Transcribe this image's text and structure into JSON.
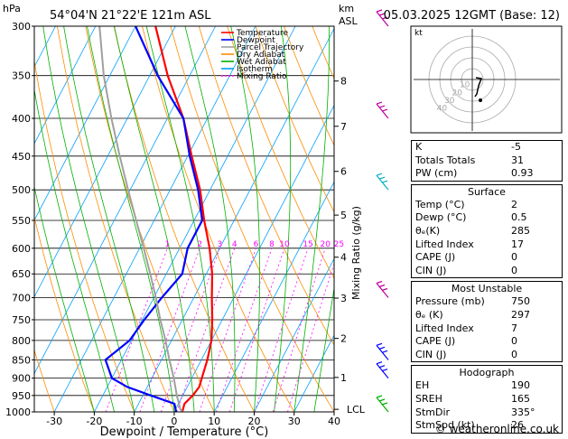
{
  "header": {
    "location": "54°04'N  21°22'E  121m  ASL",
    "datetime": "05.03.2025  12GMT  (Base: 12)",
    "hpa_label": "hPa",
    "km_label": "km",
    "asl_label": "ASL"
  },
  "chart_data": {
    "type": "line",
    "xlabel": "Dewpoint / Temperature (°C)",
    "ylabel": "Mixing Ratio (g/kg)",
    "xlim": [
      -35,
      40
    ],
    "x_ticks": [
      -30,
      -20,
      -10,
      0,
      10,
      20,
      30,
      40
    ],
    "pressure_levels": [
      300,
      350,
      400,
      450,
      500,
      550,
      600,
      650,
      700,
      750,
      800,
      850,
      900,
      950,
      1000
    ],
    "km_ticks": [
      {
        "label": "8",
        "p": 356
      },
      {
        "label": "7",
        "p": 410
      },
      {
        "label": "6",
        "p": 472
      },
      {
        "label": "5",
        "p": 541
      },
      {
        "label": "4",
        "p": 617
      },
      {
        "label": "3",
        "p": 701
      },
      {
        "label": "2",
        "p": 795
      },
      {
        "label": "1",
        "p": 898
      }
    ],
    "lcl_label": "LCL",
    "lcl_p": 992,
    "mixing_ratio_labels": [
      "1",
      "2",
      "3",
      "4",
      "6",
      "8",
      "10",
      "15",
      "20",
      "25"
    ],
    "mixing_ratio_values": [
      1,
      2,
      3,
      4,
      6,
      8,
      10,
      15,
      20,
      25
    ],
    "legend": [
      {
        "name": "Temperature",
        "color": "#ff0000"
      },
      {
        "name": "Dewpoint",
        "color": "#0000ff"
      },
      {
        "name": "Parcel Trajectory",
        "color": "#a0a0a0"
      },
      {
        "name": "Dry Adiabat",
        "color": "#ff8c00"
      },
      {
        "name": "Wet Adiabat",
        "color": "#00b000"
      },
      {
        "name": "Isotherm",
        "color": "#00a0ff"
      },
      {
        "name": "Mixing Ratio",
        "color": "#ff00ff"
      }
    ],
    "series": [
      {
        "name": "Temperature",
        "color": "#ff0000",
        "p": [
          1000,
          975,
          950,
          925,
          900,
          850,
          800,
          750,
          700,
          650,
          600,
          550,
          500,
          450,
          400,
          350,
          300
        ],
        "t": [
          2,
          1.5,
          2.5,
          3,
          2.5,
          1.5,
          0,
          -2.5,
          -5.5,
          -8.5,
          -12.5,
          -17.5,
          -22.5,
          -29,
          -36,
          -45.5,
          -55
        ]
      },
      {
        "name": "Dewpoint",
        "color": "#0000ff",
        "p": [
          1000,
          975,
          950,
          925,
          900,
          850,
          800,
          750,
          700,
          650,
          600,
          550,
          500,
          450,
          400,
          350,
          300
        ],
        "t": [
          0.5,
          -1,
          -8,
          -15,
          -20,
          -24,
          -20.5,
          -19.5,
          -18,
          -16,
          -18,
          -18,
          -23,
          -29.5,
          -36,
          -48,
          -60
        ]
      },
      {
        "name": "Parcel Trajectory",
        "color": "#a0a0a0",
        "p": [
          1000,
          992,
          950,
          900,
          850,
          800,
          750,
          700,
          650,
          600,
          550,
          500,
          450,
          400,
          350,
          300
        ],
        "t": [
          2,
          1.2,
          -1.5,
          -4.5,
          -8,
          -11.5,
          -15.5,
          -19.5,
          -24,
          -29,
          -34.5,
          -40.5,
          -47,
          -54,
          -61.5,
          -69
        ]
      }
    ],
    "wind_barbs": [
      {
        "p": 300,
        "color": "#c000a0"
      },
      {
        "p": 400,
        "color": "#c000a0"
      },
      {
        "p": 500,
        "color": "#00b0c0"
      },
      {
        "p": 700,
        "color": "#c000a0"
      },
      {
        "p": 850,
        "color": "#0000ff"
      },
      {
        "p": 900,
        "color": "#0000ff"
      },
      {
        "p": 1000,
        "color": "#00b000"
      }
    ],
    "hodograph": {
      "label": "kt",
      "ring_labels": [
        "10",
        "20",
        "30",
        "40"
      ]
    }
  },
  "indices": {
    "rows": [
      {
        "label": "K",
        "value": "-5"
      },
      {
        "label": "Totals Totals",
        "value": "31"
      },
      {
        "label": "PW (cm)",
        "value": "0.93"
      }
    ]
  },
  "surface": {
    "title": "Surface",
    "rows": [
      {
        "label": "Temp (°C)",
        "value": "2"
      },
      {
        "label": "Dewp (°C)",
        "value": "0.5"
      },
      {
        "label": "θₑ(K)",
        "value": "285"
      },
      {
        "label": "Lifted Index",
        "value": "17"
      },
      {
        "label": "CAPE (J)",
        "value": "0"
      },
      {
        "label": "CIN (J)",
        "value": "0"
      }
    ]
  },
  "most_unstable": {
    "title": "Most Unstable",
    "rows": [
      {
        "label": "Pressure (mb)",
        "value": "750"
      },
      {
        "label": "θₑ (K)",
        "value": "297"
      },
      {
        "label": "Lifted Index",
        "value": "7"
      },
      {
        "label": "CAPE (J)",
        "value": "0"
      },
      {
        "label": "CIN (J)",
        "value": "0"
      }
    ]
  },
  "hodograph_table": {
    "title": "Hodograph",
    "rows": [
      {
        "label": "EH",
        "value": "190"
      },
      {
        "label": "SREH",
        "value": "165"
      },
      {
        "label": "StmDir",
        "value": "335°"
      },
      {
        "label": "StmSpd (kt)",
        "value": "26"
      }
    ]
  },
  "footer": "© weatheronline.co.uk"
}
